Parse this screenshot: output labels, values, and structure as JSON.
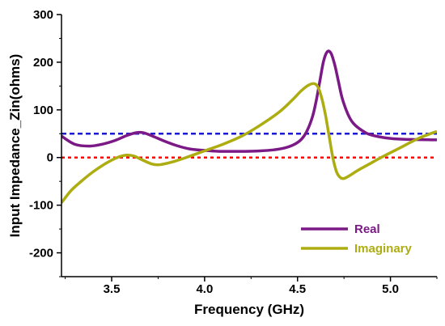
{
  "chart_data": {
    "type": "line",
    "title": "",
    "xlabel": "Frequency (GHz)",
    "ylabel": "Input Impedance_Zin(ohms)",
    "xlim": [
      3.23,
      5.25
    ],
    "ylim": [
      -250,
      300
    ],
    "xticks": [
      3.5,
      4.0,
      4.5,
      5.0
    ],
    "xtick_labels": [
      "3.5",
      "4.0",
      "4.5",
      "5.0"
    ],
    "yticks": [
      300,
      200,
      100,
      0,
      -100,
      -200
    ],
    "ytick_labels": [
      "300",
      "200",
      "100",
      "0",
      "-100",
      "-200"
    ],
    "grid": false,
    "legend_position": "bottom-right",
    "series": [
      {
        "name": "Real",
        "color": "#7b1a86",
        "x": [
          3.23,
          3.3,
          3.38,
          3.45,
          3.52,
          3.58,
          3.63,
          3.67,
          3.72,
          3.78,
          3.85,
          3.92,
          4.0,
          4.08,
          4.15,
          4.22,
          4.3,
          4.37,
          4.43,
          4.48,
          4.52,
          4.55,
          4.58,
          4.6,
          4.62,
          4.64,
          4.66,
          4.68,
          4.7,
          4.72,
          4.74,
          4.77,
          4.8,
          4.85,
          4.9,
          5.0,
          5.1,
          5.25
        ],
        "y": [
          45,
          28,
          24,
          28,
          36,
          46,
          52,
          52,
          45,
          35,
          25,
          18,
          15,
          13,
          13,
          13,
          14,
          16,
          20,
          27,
          38,
          55,
          85,
          118,
          160,
          202,
          222,
          219,
          195,
          160,
          125,
          92,
          72,
          56,
          47,
          40,
          38,
          37
        ]
      },
      {
        "name": "Imaginary",
        "color": "#adad12",
        "x": [
          3.23,
          3.28,
          3.33,
          3.4,
          3.47,
          3.53,
          3.58,
          3.62,
          3.67,
          3.72,
          3.76,
          3.82,
          3.9,
          4.0,
          4.1,
          4.2,
          4.3,
          4.4,
          4.47,
          4.52,
          4.56,
          4.59,
          4.61,
          4.63,
          4.65,
          4.67,
          4.69,
          4.71,
          4.73,
          4.75,
          4.78,
          4.82,
          4.88,
          4.95,
          5.05,
          5.15,
          5.25
        ],
        "y": [
          -95,
          -70,
          -52,
          -30,
          -12,
          0,
          5,
          3,
          -6,
          -14,
          -15,
          -10,
          0,
          14,
          28,
          45,
          68,
          95,
          120,
          140,
          152,
          155,
          148,
          125,
          90,
          45,
          0,
          -30,
          -42,
          -44,
          -38,
          -28,
          -15,
          0,
          20,
          40,
          55
        ]
      }
    ],
    "reference_lines": [
      {
        "y": 50,
        "color": "#1a1ad6",
        "style": "dashed"
      },
      {
        "y": 0,
        "color": "#ff0000",
        "style": "dotted"
      }
    ]
  }
}
